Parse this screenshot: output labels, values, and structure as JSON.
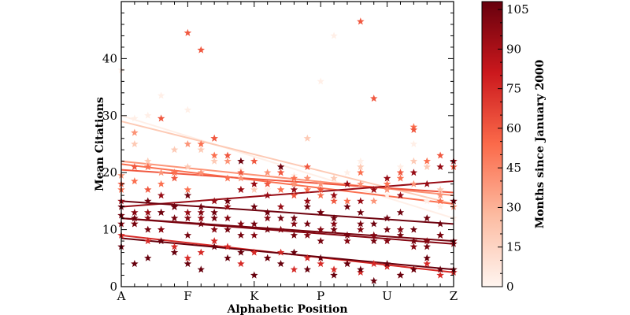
{
  "chart_data": {
    "type": "scatter",
    "title": "",
    "xlabel": "Alphabetic Position",
    "ylabel": "Mean Citations",
    "x_tick_labels": [
      "A",
      "F",
      "K",
      "P",
      "U",
      "Z"
    ],
    "xlim": [
      1,
      26
    ],
    "ylim": [
      0,
      50
    ],
    "y_ticks": [
      0,
      10,
      20,
      30,
      40
    ],
    "grid": false,
    "marker": "star",
    "colormap": {
      "name": "Reds",
      "low": "#fff5f0",
      "mid": "#fb6a4a",
      "high": "#67000d"
    },
    "colorbar": {
      "label": "Months since January 2000",
      "range": [
        0,
        108
      ],
      "ticks": [
        0,
        15,
        30,
        45,
        60,
        75,
        90,
        105
      ]
    },
    "series": [
      {
        "month": 3,
        "fit": [
          30.0,
          12.0
        ],
        "points": [
          [
            1,
            38
          ],
          [
            2,
            29.5
          ],
          [
            3,
            30
          ],
          [
            4,
            33.5
          ],
          [
            6,
            31
          ],
          [
            7,
            25
          ],
          [
            10,
            20.5
          ],
          [
            12,
            17
          ],
          [
            14,
            19.5
          ],
          [
            16,
            36
          ],
          [
            17,
            44
          ],
          [
            18,
            20
          ],
          [
            19,
            22
          ],
          [
            21,
            16
          ],
          [
            22,
            21
          ],
          [
            23,
            25
          ],
          [
            24,
            15
          ],
          [
            25,
            14
          ],
          [
            26,
            12
          ]
        ]
      },
      {
        "month": 20,
        "fit": [
          29.0,
          14.5
        ],
        "points": [
          [
            2,
            25
          ],
          [
            3,
            22
          ],
          [
            5,
            24
          ],
          [
            6,
            21
          ],
          [
            7,
            24
          ],
          [
            8,
            22
          ],
          [
            10,
            20
          ],
          [
            11,
            17
          ],
          [
            13,
            17
          ],
          [
            15,
            26
          ],
          [
            17,
            19
          ],
          [
            19,
            21
          ],
          [
            20,
            17
          ],
          [
            21,
            18
          ],
          [
            22,
            19
          ],
          [
            23,
            22
          ],
          [
            24,
            21
          ],
          [
            25,
            17
          ],
          [
            26,
            15
          ]
        ]
      },
      {
        "month": 40,
        "fit": [
          22.0,
          16.0
        ],
        "points": [
          [
            1,
            19.5
          ],
          [
            2,
            27
          ],
          [
            3,
            21
          ],
          [
            4,
            20
          ],
          [
            5,
            20
          ],
          [
            6,
            25
          ],
          [
            7,
            20
          ],
          [
            8,
            26
          ],
          [
            9,
            22
          ],
          [
            10,
            19
          ],
          [
            11,
            18
          ],
          [
            12,
            20
          ],
          [
            13,
            20
          ],
          [
            14,
            18
          ],
          [
            15,
            19
          ],
          [
            16,
            18
          ],
          [
            17,
            16
          ],
          [
            19,
            18
          ],
          [
            20,
            15
          ],
          [
            21,
            17
          ],
          [
            23,
            18
          ],
          [
            25,
            16
          ],
          [
            26,
            14
          ]
        ]
      },
      {
        "month": 52,
        "fit": [
          21.5,
          14.5
        ],
        "points": [
          [
            1,
            17
          ],
          [
            2,
            18.5
          ],
          [
            3,
            21
          ],
          [
            4,
            18
          ],
          [
            5,
            20
          ],
          [
            6,
            17
          ],
          [
            7,
            25
          ],
          [
            8,
            23
          ],
          [
            9,
            19
          ],
          [
            10,
            17
          ],
          [
            11,
            18
          ],
          [
            12,
            18
          ],
          [
            13,
            17
          ],
          [
            14,
            19
          ],
          [
            15,
            17
          ],
          [
            16,
            16
          ],
          [
            18,
            15
          ],
          [
            19,
            20
          ],
          [
            20,
            17
          ],
          [
            21,
            18
          ],
          [
            22,
            19
          ],
          [
            23,
            28
          ],
          [
            24,
            22
          ],
          [
            25,
            15
          ]
        ]
      },
      {
        "month": 60,
        "fit": [
          20.5,
          16.5
        ],
        "points": [
          [
            1,
            18
          ],
          [
            2,
            21
          ],
          [
            3,
            17
          ],
          [
            4,
            29.5
          ],
          [
            5,
            19
          ],
          [
            6,
            44.5
          ],
          [
            7,
            41.5
          ],
          [
            8,
            26
          ],
          [
            9,
            23
          ],
          [
            10,
            20
          ],
          [
            11,
            22
          ],
          [
            12,
            18
          ],
          [
            13,
            20
          ],
          [
            14,
            16
          ],
          [
            15,
            21
          ],
          [
            16,
            17
          ],
          [
            17,
            15
          ],
          [
            18,
            18
          ],
          [
            19,
            46.5
          ],
          [
            20,
            33
          ],
          [
            22,
            20
          ],
          [
            23,
            27.5
          ],
          [
            25,
            23
          ],
          [
            26,
            21
          ]
        ]
      },
      {
        "month": 75,
        "fit": [
          9.0,
          2.5
        ],
        "points": [
          [
            1,
            9
          ],
          [
            2,
            11
          ],
          [
            3,
            8
          ],
          [
            4,
            10
          ],
          [
            5,
            7
          ],
          [
            6,
            5
          ],
          [
            7,
            6
          ],
          [
            8,
            8
          ],
          [
            9,
            7
          ],
          [
            10,
            4
          ],
          [
            11,
            6
          ],
          [
            12,
            5
          ],
          [
            13,
            6
          ],
          [
            14,
            3
          ],
          [
            15,
            5
          ],
          [
            16,
            4
          ],
          [
            17,
            3
          ],
          [
            18,
            4
          ],
          [
            19,
            2.5
          ],
          [
            20,
            4
          ],
          [
            21,
            3.5
          ],
          [
            22,
            2
          ],
          [
            23,
            3
          ],
          [
            24,
            4
          ],
          [
            25,
            2
          ],
          [
            26,
            2.5
          ]
        ]
      },
      {
        "month": 95,
        "fit": [
          14.0,
          18.5
        ],
        "points": [
          [
            1,
            15
          ],
          [
            2,
            12
          ],
          [
            3,
            13
          ],
          [
            4,
            16
          ],
          [
            5,
            14
          ],
          [
            6,
            13
          ],
          [
            7,
            12
          ],
          [
            8,
            15
          ],
          [
            9,
            14
          ],
          [
            10,
            17
          ],
          [
            11,
            18
          ],
          [
            12,
            16
          ],
          [
            13,
            14
          ],
          [
            14,
            17
          ],
          [
            15,
            15
          ],
          [
            16,
            13
          ],
          [
            17,
            16
          ],
          [
            18,
            18
          ],
          [
            19,
            15
          ],
          [
            20,
            17
          ],
          [
            21,
            19
          ],
          [
            22,
            16
          ],
          [
            23,
            20
          ],
          [
            24,
            18
          ],
          [
            25,
            21
          ],
          [
            26,
            22
          ]
        ]
      },
      {
        "month": 100,
        "fit": [
          12.0,
          7.5
        ],
        "points": [
          [
            1,
            11
          ],
          [
            2,
            13
          ],
          [
            3,
            12
          ],
          [
            4,
            10
          ],
          [
            5,
            14
          ],
          [
            6,
            12
          ],
          [
            7,
            13
          ],
          [
            8,
            10
          ],
          [
            9,
            12
          ],
          [
            10,
            11
          ],
          [
            11,
            9
          ],
          [
            12,
            12
          ],
          [
            13,
            10
          ],
          [
            14,
            11
          ],
          [
            15,
            9
          ],
          [
            16,
            10
          ],
          [
            17,
            11
          ],
          [
            18,
            8
          ],
          [
            19,
            10
          ],
          [
            20,
            9
          ],
          [
            21,
            8
          ],
          [
            22,
            10
          ],
          [
            23,
            7
          ],
          [
            24,
            8
          ],
          [
            25,
            9
          ],
          [
            26,
            7.5
          ]
        ]
      },
      {
        "month": 104,
        "fit": [
          12.0,
          8.0
        ],
        "points": [
          [
            1,
            12.5
          ],
          [
            2,
            11
          ],
          [
            3,
            10
          ],
          [
            4,
            13
          ],
          [
            5,
            12
          ],
          [
            6,
            9
          ],
          [
            7,
            11
          ],
          [
            8,
            12
          ],
          [
            9,
            10
          ],
          [
            10,
            9
          ],
          [
            11,
            11
          ],
          [
            12,
            10
          ],
          [
            13,
            12
          ],
          [
            14,
            9
          ],
          [
            15,
            11
          ],
          [
            16,
            8
          ],
          [
            17,
            10
          ],
          [
            18,
            9
          ],
          [
            19,
            11
          ],
          [
            20,
            8
          ],
          [
            21,
            10
          ],
          [
            22,
            9
          ],
          [
            23,
            8
          ],
          [
            24,
            7
          ],
          [
            25,
            9
          ],
          [
            26,
            8
          ]
        ]
      },
      {
        "month": 106,
        "fit": [
          15.0,
          11.0
        ],
        "points": [
          [
            1,
            14
          ],
          [
            2,
            12
          ],
          [
            3,
            15
          ],
          [
            4,
            13
          ],
          [
            5,
            14
          ],
          [
            6,
            16
          ],
          [
            7,
            14
          ],
          [
            8,
            13
          ],
          [
            9,
            15
          ],
          [
            10,
            22
          ],
          [
            11,
            14
          ],
          [
            12,
            13
          ],
          [
            13,
            21
          ],
          [
            14,
            12
          ],
          [
            15,
            14
          ],
          [
            16,
            13
          ],
          [
            17,
            12
          ],
          [
            18,
            14
          ],
          [
            19,
            13
          ],
          [
            20,
            11
          ],
          [
            21,
            12
          ],
          [
            22,
            13
          ],
          [
            23,
            10
          ],
          [
            24,
            12
          ],
          [
            25,
            11
          ],
          [
            26,
            15
          ]
        ]
      },
      {
        "month": 108,
        "fit": [
          8.5,
          3.0
        ],
        "points": [
          [
            1,
            7
          ],
          [
            2,
            4
          ],
          [
            3,
            5
          ],
          [
            4,
            8
          ],
          [
            5,
            6
          ],
          [
            6,
            4
          ],
          [
            7,
            3
          ],
          [
            8,
            7
          ],
          [
            9,
            5
          ],
          [
            10,
            6
          ],
          [
            11,
            2
          ],
          [
            12,
            5
          ],
          [
            13,
            4
          ],
          [
            14,
            6
          ],
          [
            15,
            3
          ],
          [
            16,
            5
          ],
          [
            17,
            2
          ],
          [
            18,
            4
          ],
          [
            19,
            3
          ],
          [
            20,
            1
          ],
          [
            21,
            4
          ],
          [
            22,
            2
          ],
          [
            23,
            3
          ],
          [
            24,
            5
          ],
          [
            25,
            3
          ],
          [
            26,
            3
          ]
        ]
      }
    ]
  }
}
